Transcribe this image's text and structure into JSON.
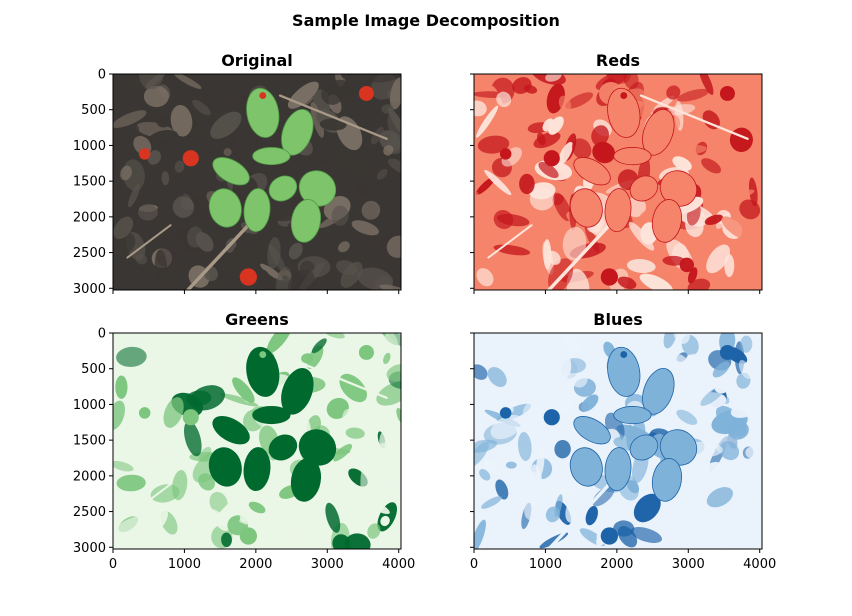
{
  "figure_title": "Sample Image Decomposition",
  "palette": {
    "original": {
      "bg_dark": "#3a3633",
      "bg_mid": "#57524c",
      "leaf": "#7ec46a",
      "leaf_dark": "#4f9a47",
      "berry": "#d8341f",
      "twig": "#a89a86"
    },
    "reds": {
      "light": "#fde5dc",
      "mid": "#f5846a",
      "dark": "#c4161c"
    },
    "greens": {
      "light": "#eaf6e6",
      "mid": "#7cc67e",
      "dark": "#00692e"
    },
    "blues": {
      "light": "#eaf2fb",
      "mid": "#7fb2d9",
      "dark": "#1d63a8"
    }
  },
  "chart_data": [
    {
      "type": "image",
      "title": "Original",
      "colormap": "rgb",
      "xlim": [
        0,
        4032
      ],
      "ylim": [
        3024,
        0
      ],
      "xticks": [
        0,
        1000,
        2000,
        3000,
        4000
      ],
      "yticks": [
        0,
        500,
        1000,
        1500,
        2000,
        2500,
        3000
      ],
      "xtick_labels_shown": false,
      "ytick_labels_shown": true
    },
    {
      "type": "image",
      "title": "Reds",
      "colormap": "Reds",
      "xlim": [
        0,
        4032
      ],
      "ylim": [
        3024,
        0
      ],
      "xticks": [
        0,
        1000,
        2000,
        3000,
        4000
      ],
      "yticks": [
        0,
        500,
        1000,
        1500,
        2000,
        2500,
        3000
      ],
      "xtick_labels_shown": false,
      "ytick_labels_shown": false
    },
    {
      "type": "image",
      "title": "Greens",
      "colormap": "Greens",
      "xlim": [
        0,
        4032
      ],
      "ylim": [
        3024,
        0
      ],
      "xticks": [
        0,
        1000,
        2000,
        3000,
        4000
      ],
      "yticks": [
        0,
        500,
        1000,
        1500,
        2000,
        2500,
        3000
      ],
      "xtick_labels_shown": true,
      "ytick_labels_shown": true
    },
    {
      "type": "image",
      "title": "Blues",
      "colormap": "Blues",
      "xlim": [
        0,
        4032
      ],
      "ylim": [
        3024,
        0
      ],
      "xticks": [
        0,
        1000,
        2000,
        3000,
        4000
      ],
      "yticks": [
        0,
        500,
        1000,
        1500,
        2000,
        2500,
        3000
      ],
      "xtick_labels_shown": true,
      "ytick_labels_shown": false
    }
  ]
}
